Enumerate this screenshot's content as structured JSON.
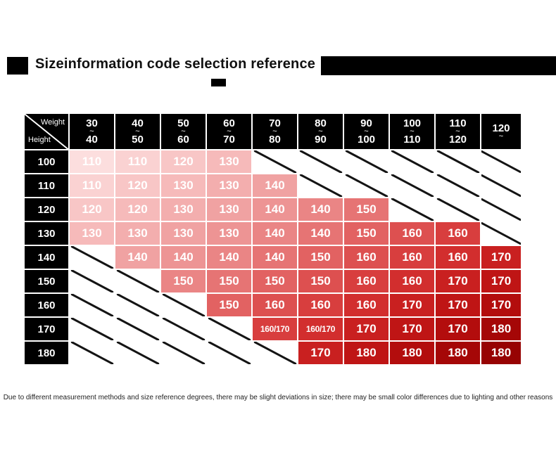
{
  "title": {
    "text": "Sizeinformation code selection reference"
  },
  "corner": {
    "weight": "Weight",
    "height": "Height"
  },
  "theme": {
    "ink": "#000000",
    "header_bg": "#000000",
    "title_color": "#111111",
    "slash_color": "#141414",
    "cell_text": "#ffffff",
    "lightest_cell": "#fcdede",
    "darkest_cell": "#970303"
  },
  "columns": [
    {
      "lines": [
        "30",
        "~",
        "40"
      ]
    },
    {
      "lines": [
        "40",
        "~",
        "50"
      ]
    },
    {
      "lines": [
        "50",
        "~",
        "60"
      ]
    },
    {
      "lines": [
        "60",
        "~",
        "70"
      ]
    },
    {
      "lines": [
        "70",
        "~",
        "80"
      ]
    },
    {
      "lines": [
        "80",
        "~",
        "90"
      ]
    },
    {
      "lines": [
        "90",
        "~",
        "100"
      ]
    },
    {
      "lines": [
        "100",
        "~",
        "110"
      ]
    },
    {
      "lines": [
        "110",
        "~",
        "120"
      ]
    },
    {
      "lines": [
        "120",
        "~"
      ]
    }
  ],
  "rows": [
    {
      "label": "100",
      "cells": [
        {
          "v": "110",
          "bg": "#fcdede"
        },
        {
          "v": "110",
          "bg": "#fad2d2"
        },
        {
          "v": "120",
          "bg": "#f8c6c6"
        },
        {
          "v": "130",
          "bg": "#f6baba"
        },
        {
          "slash": true
        },
        {
          "slash": true
        },
        {
          "slash": true
        },
        {
          "slash": true
        },
        {
          "slash": true
        },
        {
          "slash": true
        }
      ]
    },
    {
      "label": "110",
      "cells": [
        {
          "v": "110",
          "bg": "#fad2d2"
        },
        {
          "v": "120",
          "bg": "#f8c6c6"
        },
        {
          "v": "130",
          "bg": "#f6baba"
        },
        {
          "v": "130",
          "bg": "#f3aeae"
        },
        {
          "v": "140",
          "bg": "#f0a2a2"
        },
        {
          "slash": true
        },
        {
          "slash": true
        },
        {
          "slash": true
        },
        {
          "slash": true
        },
        {
          "slash": true
        }
      ]
    },
    {
      "label": "120",
      "cells": [
        {
          "v": "120",
          "bg": "#f8c6c6"
        },
        {
          "v": "120",
          "bg": "#f6baba"
        },
        {
          "v": "130",
          "bg": "#f3aeae"
        },
        {
          "v": "130",
          "bg": "#f0a2a2"
        },
        {
          "v": "140",
          "bg": "#ed9494"
        },
        {
          "v": "140",
          "bg": "#ea8585"
        },
        {
          "v": "150",
          "bg": "#e67474"
        },
        {
          "slash": true
        },
        {
          "slash": true
        },
        {
          "slash": true
        }
      ]
    },
    {
      "label": "130",
      "cells": [
        {
          "v": "130",
          "bg": "#f6baba"
        },
        {
          "v": "130",
          "bg": "#f3aeae"
        },
        {
          "v": "130",
          "bg": "#f0a2a2"
        },
        {
          "v": "130",
          "bg": "#ed9494"
        },
        {
          "v": "140",
          "bg": "#ea8585"
        },
        {
          "v": "140",
          "bg": "#e67474"
        },
        {
          "v": "150",
          "bg": "#e26262"
        },
        {
          "v": "160",
          "bg": "#dd5050"
        },
        {
          "v": "160",
          "bg": "#d83e3e"
        },
        {
          "slash": true
        }
      ]
    },
    {
      "label": "140",
      "cells": [
        {
          "slash": true
        },
        {
          "v": "140",
          "bg": "#f0a2a2"
        },
        {
          "v": "140",
          "bg": "#ed9494"
        },
        {
          "v": "140",
          "bg": "#ea8585"
        },
        {
          "v": "140",
          "bg": "#e67474"
        },
        {
          "v": "150",
          "bg": "#e26262"
        },
        {
          "v": "160",
          "bg": "#dd5050"
        },
        {
          "v": "160",
          "bg": "#d83e3e"
        },
        {
          "v": "160",
          "bg": "#d22e2e"
        },
        {
          "v": "170",
          "bg": "#c92020"
        }
      ]
    },
    {
      "label": "150",
      "cells": [
        {
          "slash": true
        },
        {
          "slash": true
        },
        {
          "v": "150",
          "bg": "#ea8585"
        },
        {
          "v": "150",
          "bg": "#e67474"
        },
        {
          "v": "150",
          "bg": "#e26262"
        },
        {
          "v": "150",
          "bg": "#dd5050"
        },
        {
          "v": "160",
          "bg": "#d83e3e"
        },
        {
          "v": "160",
          "bg": "#d22e2e"
        },
        {
          "v": "170",
          "bg": "#c92020"
        },
        {
          "v": "170",
          "bg": "#bf1515"
        }
      ]
    },
    {
      "label": "160",
      "cells": [
        {
          "slash": true
        },
        {
          "slash": true
        },
        {
          "slash": true
        },
        {
          "v": "150",
          "bg": "#e26262"
        },
        {
          "v": "160",
          "bg": "#dd5050"
        },
        {
          "v": "160",
          "bg": "#d83e3e"
        },
        {
          "v": "160",
          "bg": "#d22e2e"
        },
        {
          "v": "170",
          "bg": "#c92020"
        },
        {
          "v": "170",
          "bg": "#bf1515"
        },
        {
          "v": "170",
          "bg": "#b30d0d"
        }
      ]
    },
    {
      "label": "170",
      "cells": [
        {
          "slash": true
        },
        {
          "slash": true
        },
        {
          "slash": true
        },
        {
          "slash": true
        },
        {
          "v": "160/170",
          "bg": "#d83e3e"
        },
        {
          "v": "160/170",
          "bg": "#d22e2e"
        },
        {
          "v": "170",
          "bg": "#c92020"
        },
        {
          "v": "170",
          "bg": "#bf1515"
        },
        {
          "v": "170",
          "bg": "#b30d0d"
        },
        {
          "v": "180",
          "bg": "#a50707"
        }
      ]
    },
    {
      "label": "180",
      "cells": [
        {
          "slash": true
        },
        {
          "slash": true
        },
        {
          "slash": true
        },
        {
          "slash": true
        },
        {
          "slash": true
        },
        {
          "v": "170",
          "bg": "#c92020"
        },
        {
          "v": "180",
          "bg": "#bf1515"
        },
        {
          "v": "180",
          "bg": "#b30d0d"
        },
        {
          "v": "180",
          "bg": "#a50707"
        },
        {
          "v": "180",
          "bg": "#970303"
        }
      ]
    }
  ],
  "footer": {
    "text": "Due to different measurement methods and size reference degrees, there may be slight deviations in size; there may be small color differences due to lighting and other reasons"
  },
  "chart_data": {
    "type": "heatmap",
    "title": "Sizeinformation code selection reference",
    "x_label": "Weight",
    "y_label": "Height",
    "x_categories": [
      "30~40",
      "40~50",
      "50~60",
      "60~70",
      "70~80",
      "80~90",
      "90~100",
      "100~110",
      "110~120",
      "120~"
    ],
    "y_categories": [
      "100",
      "110",
      "120",
      "130",
      "140",
      "150",
      "160",
      "170",
      "180"
    ],
    "values": [
      [
        "110",
        "110",
        "120",
        "130",
        null,
        null,
        null,
        null,
        null,
        null
      ],
      [
        "110",
        "120",
        "130",
        "130",
        "140",
        null,
        null,
        null,
        null,
        null
      ],
      [
        "120",
        "120",
        "130",
        "130",
        "140",
        "140",
        "150",
        null,
        null,
        null
      ],
      [
        "130",
        "130",
        "130",
        "130",
        "140",
        "140",
        "150",
        "160",
        "160",
        null
      ],
      [
        null,
        "140",
        "140",
        "140",
        "140",
        "150",
        "160",
        "160",
        "160",
        "170"
      ],
      [
        null,
        null,
        "150",
        "150",
        "150",
        "150",
        "160",
        "160",
        "170",
        "170"
      ],
      [
        null,
        null,
        null,
        "150",
        "160",
        "160",
        "160",
        "170",
        "170",
        "170"
      ],
      [
        null,
        null,
        null,
        null,
        "160/170",
        "160/170",
        "170",
        "170",
        "170",
        "180"
      ],
      [
        null,
        null,
        null,
        null,
        null,
        "170",
        "180",
        "180",
        "180",
        "180"
      ]
    ],
    "color_scale": {
      "min_color": "#fcdede",
      "max_color": "#970303",
      "direction": "light top-left to dark bottom-right"
    },
    "legend": "none",
    "grid": "white 2px gaps between cells; empty combinations marked with black diagonal slash"
  }
}
